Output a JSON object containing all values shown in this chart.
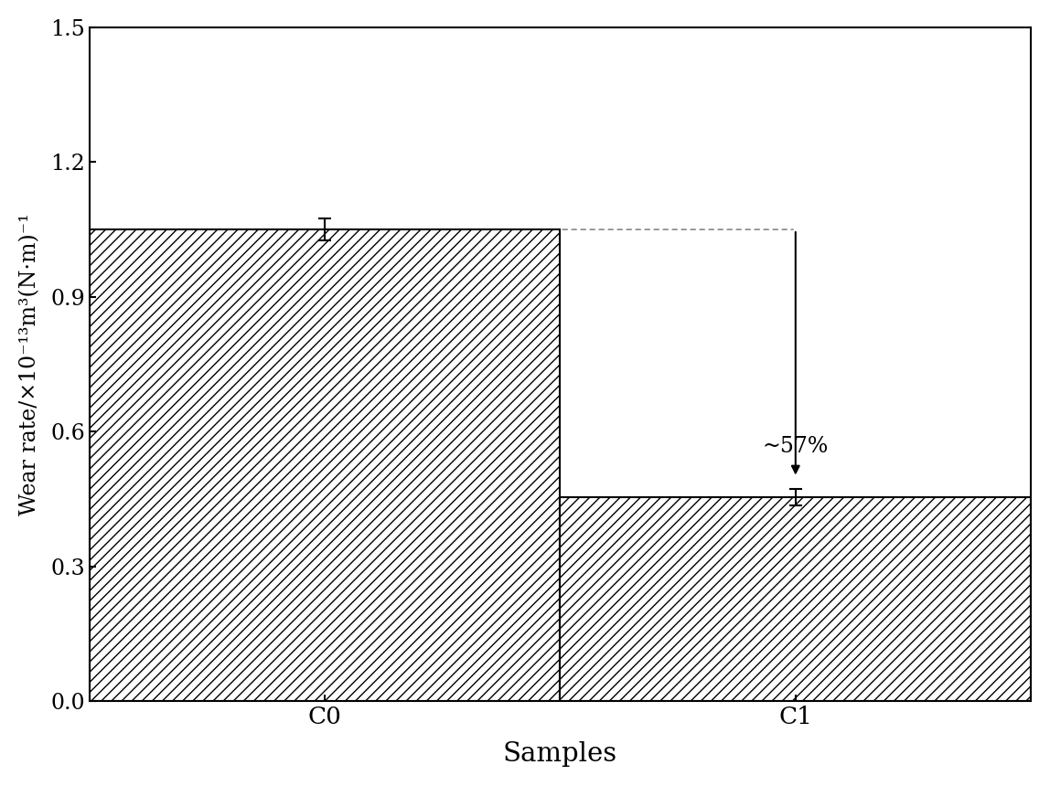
{
  "categories": [
    "C0",
    "C1"
  ],
  "values": [
    1.05,
    0.455
  ],
  "errors": [
    0.025,
    0.018
  ],
  "bar_color": "#ffffff",
  "bar_edgecolor": "#000000",
  "hatch": "///",
  "ylim": [
    0,
    1.5
  ],
  "yticks": [
    0.0,
    0.3,
    0.6,
    0.9,
    1.2,
    1.5
  ],
  "ylabel": "Wear rate/×10⁻¹³m³(N·m)⁻¹",
  "xlabel": "Samples",
  "annotation_text": "~57%",
  "arrow_color": "#000000",
  "dotted_line_color": "#888888",
  "background_color": "#ffffff",
  "bar_width": 0.5,
  "x_positions": [
    0.25,
    0.75
  ],
  "xlim": [
    0,
    1.0
  ],
  "figsize": [
    11.48,
    8.6
  ],
  "dpi": 100
}
